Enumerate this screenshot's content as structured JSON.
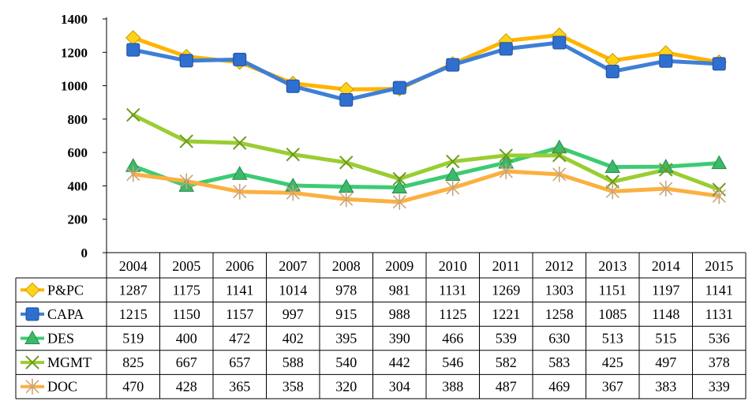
{
  "chart_data": {
    "type": "line",
    "title": "",
    "xlabel": "",
    "ylabel": "",
    "ylim": [
      0,
      1400
    ],
    "yticks": [
      0,
      200,
      400,
      600,
      800,
      1000,
      1200,
      1400
    ],
    "categories": [
      "2004",
      "2005",
      "2006",
      "2007",
      "2008",
      "2009",
      "2010",
      "2011",
      "2012",
      "2013",
      "2014",
      "2015"
    ],
    "grid": false,
    "data_table": true,
    "series": [
      {
        "name": "P&PC",
        "color": "#FFB300",
        "marker": "diamond",
        "marker_color": "#FFD21A",
        "values": [
          1287,
          1175,
          1141,
          1014,
          978,
          981,
          1131,
          1269,
          1303,
          1151,
          1197,
          1141
        ]
      },
      {
        "name": "CAPA",
        "color": "#3F7FD6",
        "marker": "square",
        "marker_color": "#2F6FD0",
        "values": [
          1215,
          1150,
          1157,
          997,
          915,
          988,
          1125,
          1221,
          1258,
          1085,
          1148,
          1131
        ]
      },
      {
        "name": "DES",
        "color": "#3DCB73",
        "marker": "triangle",
        "marker_color": "#3CB96A",
        "values": [
          519,
          400,
          472,
          402,
          395,
          390,
          466,
          539,
          630,
          513,
          515,
          536
        ]
      },
      {
        "name": "MGMT",
        "color": "#9ACD32",
        "marker": "x",
        "marker_color": "#9ACD32",
        "values": [
          825,
          667,
          657,
          588,
          540,
          442,
          546,
          582,
          583,
          425,
          497,
          378
        ]
      },
      {
        "name": "DOC",
        "color": "#FBB040",
        "marker": "star",
        "marker_color": "#F5B85A",
        "values": [
          470,
          428,
          365,
          358,
          320,
          304,
          388,
          487,
          469,
          367,
          383,
          339
        ]
      }
    ]
  }
}
